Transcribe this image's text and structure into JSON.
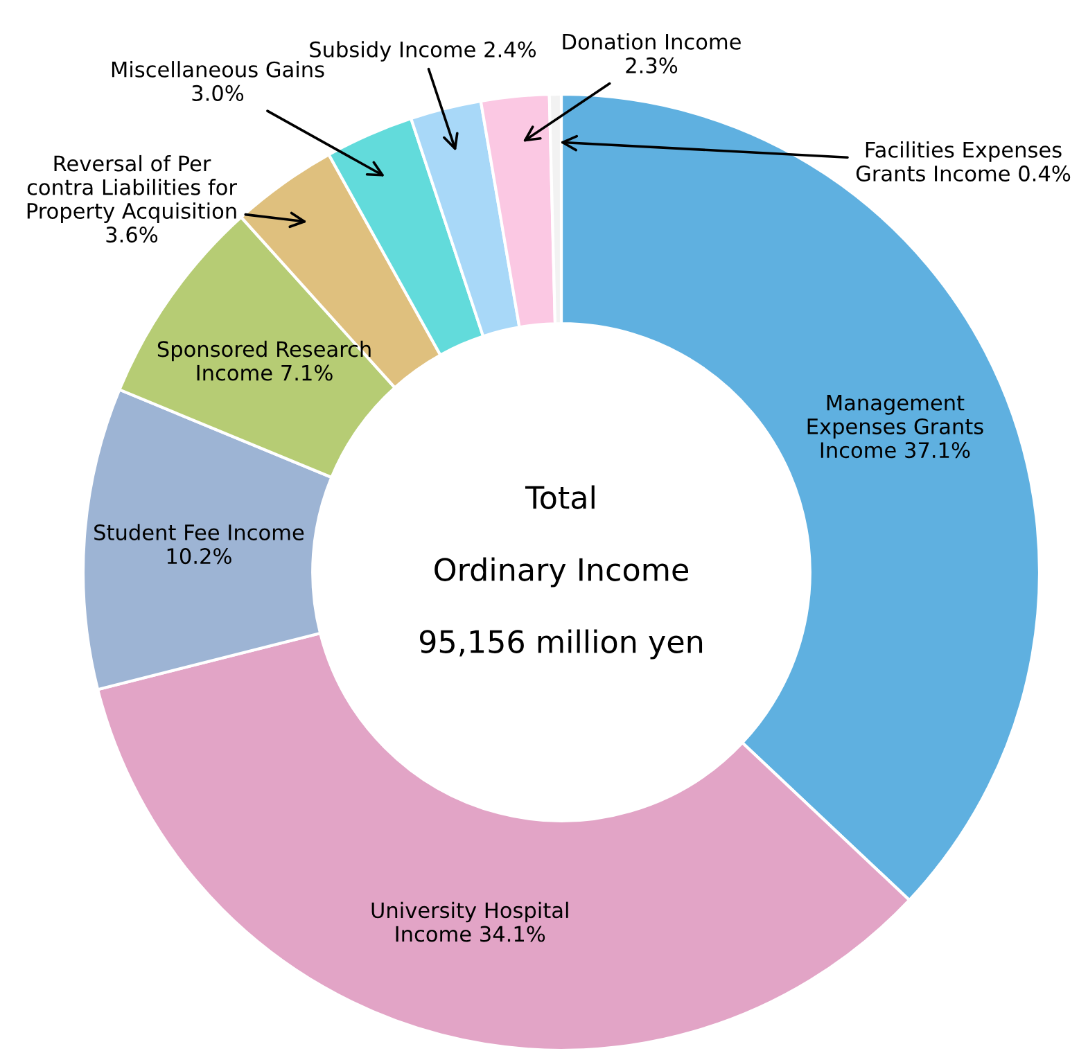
{
  "chart_data": {
    "type": "donut",
    "categories": [
      "Management\nExpenses Grants\nIncome",
      "University Hospital\nIncome",
      "Student Fee Income",
      "Sponsored Research\nIncome",
      "Reversal of Per\ncontra Liabilities for\nProperty Acquisition",
      "Miscellaneous Gains",
      "Subsidy Income",
      "Donation Income",
      "Facilities Expenses\nGrants Income"
    ],
    "values": [
      37.1,
      34.1,
      10.2,
      7.1,
      3.6,
      3.0,
      2.4,
      2.3,
      0.4
    ],
    "value_labels": [
      "37.1%",
      "34.1%",
      "10.2%",
      "7.1%",
      "3.6%",
      "3.0%",
      "2.4%",
      "2.3%",
      "0.4%"
    ],
    "colors": [
      "#5fb0e0",
      "#e2a4c6",
      "#9db4d4",
      "#b6cc74",
      "#dfc07e",
      "#62dbdb",
      "#a8d8f8",
      "#fbc8e3",
      "#f2f2f2"
    ],
    "annotations": [
      "Total",
      "Ordinary Income",
      "95,156 million yen"
    ]
  }
}
